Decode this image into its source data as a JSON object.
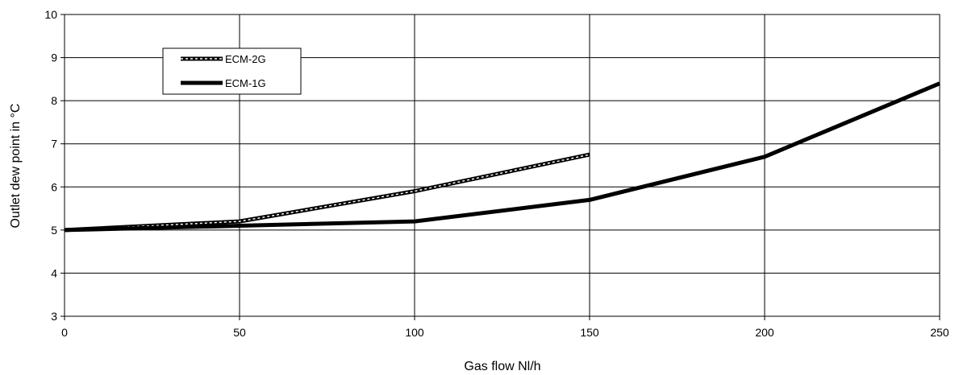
{
  "chart_data": {
    "type": "line",
    "title": "",
    "xlabel": "Gas flow Nl/h",
    "ylabel": "Outlet dew point in °C",
    "xlim": [
      0,
      250
    ],
    "ylim": [
      3,
      10
    ],
    "xticks": [
      0,
      50,
      100,
      150,
      200,
      250
    ],
    "yticks": [
      3,
      4,
      5,
      6,
      7,
      8,
      9,
      10
    ],
    "grid": true,
    "legend_position": "top-left",
    "series": [
      {
        "name": "ECM-2G",
        "style": "dashed",
        "color": "#000000",
        "x": [
          0,
          50,
          100,
          150
        ],
        "y": [
          5.0,
          5.2,
          5.9,
          6.75
        ]
      },
      {
        "name": "ECM-1G",
        "style": "solid",
        "color": "#000000",
        "x": [
          0,
          50,
          100,
          150,
          200,
          250
        ],
        "y": [
          5.0,
          5.1,
          5.2,
          5.7,
          6.7,
          8.4
        ]
      }
    ]
  }
}
